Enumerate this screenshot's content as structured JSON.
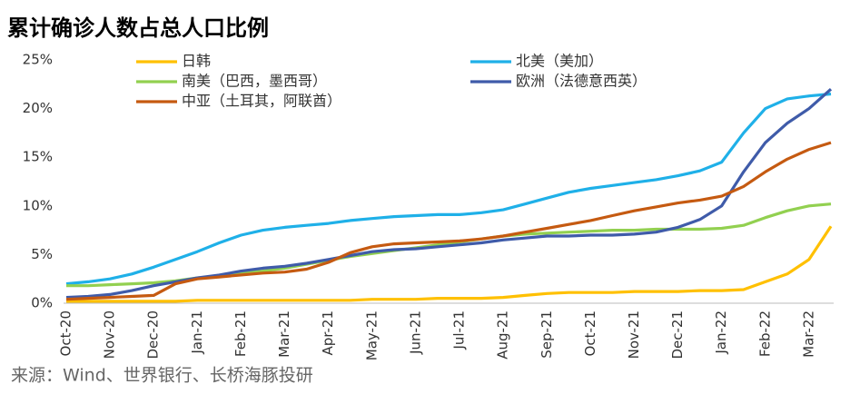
{
  "chart_data": {
    "type": "line",
    "title": "累计确诊人数占总人口比例",
    "source": "来源：Wind、世界银行、长桥海豚投研",
    "categories": [
      "Oct-20",
      null,
      "Nov-20",
      null,
      "Dec-20",
      null,
      "Jan-21",
      null,
      "Feb-21",
      null,
      "Mar-21",
      null,
      "Apr-21",
      null,
      "May-21",
      null,
      "Jun-21",
      null,
      "Jul-21",
      null,
      "Aug-21",
      null,
      "Sep-21",
      null,
      "Oct-21",
      null,
      "Nov-21",
      null,
      "Dec-21",
      null,
      "Jan-22",
      null,
      "Feb-22",
      null,
      "Mar-22",
      null
    ],
    "series": [
      {
        "name": "日韩",
        "color": "#ffc000",
        "values": [
          0.2,
          0.2,
          0.2,
          0.2,
          0.2,
          0.2,
          0.3,
          0.3,
          0.3,
          0.3,
          0.3,
          0.3,
          0.3,
          0.3,
          0.4,
          0.4,
          0.4,
          0.5,
          0.5,
          0.5,
          0.6,
          0.8,
          1.0,
          1.1,
          1.1,
          1.1,
          1.2,
          1.2,
          1.2,
          1.3,
          1.3,
          1.4,
          2.2,
          3.0,
          4.5,
          7.9
        ]
      },
      {
        "name": "北美（美加）",
        "color": "#1fb0e8",
        "values": [
          2.0,
          2.2,
          2.5,
          3.0,
          3.7,
          4.5,
          5.3,
          6.2,
          7.0,
          7.5,
          7.8,
          8.0,
          8.2,
          8.5,
          8.7,
          8.9,
          9.0,
          9.1,
          9.1,
          9.3,
          9.6,
          10.2,
          10.8,
          11.4,
          11.8,
          12.1,
          12.4,
          12.7,
          13.1,
          13.6,
          14.5,
          17.5,
          20.0,
          21.0,
          21.3,
          21.5
        ]
      },
      {
        "name": "南美（巴西，墨西哥）",
        "color": "#92d050",
        "values": [
          1.8,
          1.8,
          1.9,
          2.0,
          2.1,
          2.3,
          2.6,
          2.8,
          3.1,
          3.3,
          3.6,
          4.0,
          4.4,
          4.8,
          5.1,
          5.4,
          5.7,
          6.0,
          6.3,
          6.6,
          6.9,
          7.1,
          7.2,
          7.3,
          7.4,
          7.5,
          7.5,
          7.6,
          7.6,
          7.6,
          7.7,
          8.0,
          8.8,
          9.5,
          10.0,
          10.2
        ]
      },
      {
        "name": "欧洲（法德意西英）",
        "color": "#3f5ba9",
        "values": [
          0.6,
          0.7,
          0.9,
          1.3,
          1.8,
          2.2,
          2.6,
          2.9,
          3.3,
          3.6,
          3.8,
          4.1,
          4.5,
          4.9,
          5.3,
          5.5,
          5.6,
          5.8,
          6.0,
          6.2,
          6.5,
          6.7,
          6.9,
          6.9,
          7.0,
          7.0,
          7.1,
          7.3,
          7.8,
          8.6,
          10.0,
          13.5,
          16.5,
          18.5,
          20.0,
          22.0
        ]
      },
      {
        "name": "中亚（土耳其，阿联酋）",
        "color": "#c55a11",
        "values": [
          0.4,
          0.5,
          0.6,
          0.7,
          0.8,
          2.0,
          2.5,
          2.7,
          2.9,
          3.1,
          3.2,
          3.5,
          4.2,
          5.2,
          5.8,
          6.1,
          6.2,
          6.3,
          6.4,
          6.6,
          6.9,
          7.3,
          7.7,
          8.1,
          8.5,
          9.0,
          9.5,
          9.9,
          10.3,
          10.6,
          11.0,
          12.0,
          13.5,
          14.8,
          15.8,
          16.5
        ]
      }
    ],
    "ylim": [
      0,
      25
    ],
    "yticks": [
      {
        "value": 0,
        "label": "0%"
      },
      {
        "value": 5,
        "label": "5%"
      },
      {
        "value": 10,
        "label": "10%"
      },
      {
        "value": 15,
        "label": "15%"
      },
      {
        "value": 20,
        "label": "20%"
      },
      {
        "value": 25,
        "label": "25%"
      }
    ]
  }
}
